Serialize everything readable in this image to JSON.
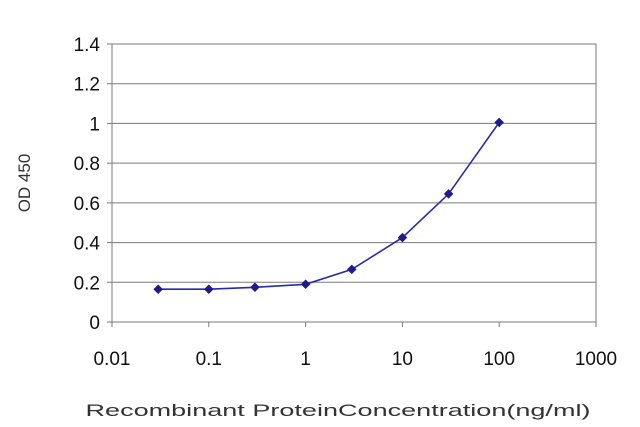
{
  "chart_data": {
    "type": "line",
    "x_scale": "log",
    "x": [
      0.03,
      0.1,
      0.3,
      1,
      3,
      10,
      30,
      100
    ],
    "series": [
      {
        "values": [
          0.165,
          0.165,
          0.175,
          0.19,
          0.265,
          0.425,
          0.645,
          1.005
        ]
      }
    ],
    "xlim": [
      0.01,
      1000
    ],
    "ylim": [
      0,
      1.4
    ],
    "x_ticks": [
      0.01,
      0.1,
      1,
      10,
      100,
      1000
    ],
    "x_tick_labels": [
      "0.01",
      "0.1",
      "1",
      "10",
      "100",
      "1000"
    ],
    "y_ticks": [
      0,
      0.2,
      0.4,
      0.6,
      0.8,
      1,
      1.2,
      1.4
    ],
    "y_tick_labels": [
      "0",
      "0.2",
      "0.4",
      "0.6",
      "0.8",
      "1",
      "1.2",
      "1.4"
    ],
    "xlabel": "Recombinant ProteinConcentration(ng/ml)",
    "ylabel": "OD 450",
    "grid": "horizontal",
    "legend": "none",
    "colors": {
      "series": "#2a2aa8",
      "marker": "#1c1c8a",
      "grid": "#7a7a7a"
    }
  }
}
